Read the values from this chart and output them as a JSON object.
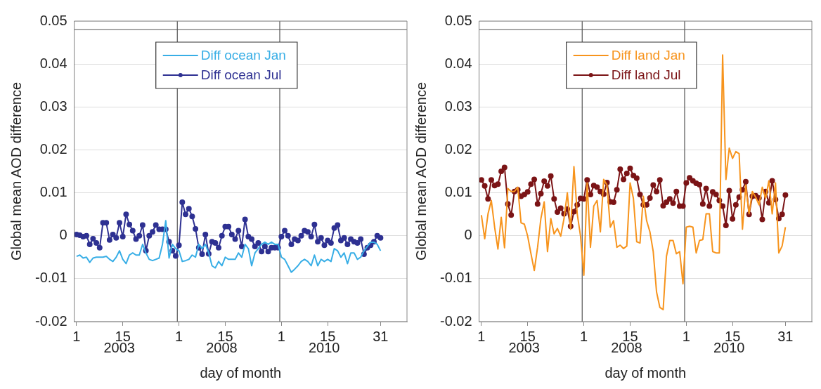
{
  "chart_data": [
    {
      "type": "line",
      "xlabel": "day of month",
      "ylabel": "Global mean AOD difference",
      "categories": [
        "1",
        null,
        null,
        null,
        null,
        null,
        null,
        null,
        null,
        null,
        null,
        null,
        null,
        null,
        "15",
        null,
        null,
        null,
        null,
        null,
        null,
        null,
        null,
        null,
        null,
        null,
        null,
        null,
        null,
        null,
        null,
        "1",
        null,
        null,
        null,
        null,
        null,
        null,
        null,
        null,
        null,
        null,
        null,
        null,
        null,
        "15",
        null,
        null,
        null,
        null,
        null,
        null,
        null,
        null,
        null,
        null,
        null,
        null,
        null,
        null,
        null,
        null,
        "1",
        null,
        null,
        null,
        null,
        null,
        null,
        null,
        null,
        null,
        null,
        null,
        null,
        null,
        "15",
        null,
        null,
        null,
        null,
        null,
        null,
        null,
        null,
        null,
        null,
        null,
        null,
        null,
        null,
        null,
        "31"
      ],
      "series": [
        {
          "name": "Diff ocean Jan",
          "color": "#38aee6",
          "marker": "none",
          "values": [
            -0.0048,
            -0.0045,
            -0.0052,
            -0.005,
            -0.0062,
            -0.0052,
            -0.005,
            -0.005,
            -0.005,
            -0.0048,
            -0.0055,
            -0.006,
            -0.005,
            -0.0035,
            -0.0055,
            -0.0065,
            -0.0045,
            -0.004,
            -0.0045,
            -0.0045,
            -0.002,
            -0.004,
            -0.0055,
            -0.0058,
            -0.0055,
            -0.0052,
            -0.002,
            0.0035,
            -0.0052,
            -0.002,
            -0.003,
            -0.0035,
            -0.006,
            -0.0058,
            -0.0055,
            -0.0045,
            -0.005,
            -0.002,
            -0.003,
            -0.002,
            -0.004,
            -0.007,
            -0.0075,
            -0.006,
            -0.007,
            -0.005,
            -0.0055,
            -0.0055,
            -0.0055,
            -0.004,
            -0.005,
            -0.002,
            -0.003,
            -0.007,
            -0.004,
            -0.003,
            -0.002,
            -0.0015,
            -0.002,
            -0.0015,
            -0.002,
            -0.002,
            -0.005,
            -0.0055,
            -0.007,
            -0.0085,
            -0.0078,
            -0.007,
            -0.006,
            -0.0055,
            -0.006,
            -0.007,
            -0.0045,
            -0.007,
            -0.0055,
            -0.006,
            -0.0055,
            -0.006,
            -0.003,
            -0.0035,
            -0.005,
            -0.004,
            -0.0065,
            -0.004,
            -0.004,
            -0.0055,
            -0.005,
            -0.0035,
            -0.0025,
            -0.0015,
            -0.0015,
            -0.002,
            -0.0035
          ]
        },
        {
          "name": "Diff ocean Jul",
          "color": "#2e3192",
          "marker": "circle",
          "values": [
            0.0003,
            0.0001,
            -0.0002,
            0,
            -0.002,
            -0.0007,
            -0.0017,
            -0.0028,
            0.003,
            0.003,
            -0.001,
            0.0003,
            -0.0005,
            0.003,
            -0.0002,
            0.005,
            0.0026,
            0.0012,
            -0.0008,
            0,
            0.0025,
            -0.0035,
            0,
            0.0009,
            0.0025,
            0.0015,
            0.0015,
            0.0015,
            -0.0014,
            -0.0035,
            -0.0047,
            -0.0022,
            0.0078,
            0.005,
            0.0063,
            0.0045,
            0.0016,
            -0.0028,
            -0.0043,
            0.0003,
            -0.0042,
            -0.0014,
            -0.0017,
            -0.0028,
            0,
            0.0021,
            0.0021,
            0.0003,
            -0.0008,
            0.0012,
            -0.0025,
            0.0038,
            -0.0002,
            -0.0008,
            -0.0025,
            -0.0017,
            -0.0037,
            -0.0025,
            -0.0037,
            -0.0028,
            -0.0028,
            -0.0028,
            -0.0002,
            0.0012,
            0,
            -0.002,
            -0.0008,
            -0.0011,
            0,
            0.0012,
            0.0009,
            -0.0002,
            0.0026,
            -0.0014,
            -0.0005,
            -0.0022,
            -0.0011,
            -0.0017,
            0.0018,
            0.0025,
            -0.0011,
            -0.0005,
            -0.002,
            -0.0008,
            -0.0014,
            -0.0017,
            -0.0008,
            -0.0043,
            -0.0028,
            -0.0022,
            -0.0014,
            0,
            -0.0005
          ]
        }
      ],
      "ylim": [
        -0.02,
        0.05
      ],
      "yticks": [
        -0.02,
        -0.01,
        0,
        0.01,
        0.02,
        0.03,
        0.04,
        0.05
      ],
      "ref_lines": [
        {
          "axis": "y",
          "value": 0.048,
          "color": "#555555"
        }
      ],
      "annotations": [
        "2003",
        "2008",
        "2010"
      ],
      "grid": "y",
      "legend": "top"
    },
    {
      "type": "line",
      "xlabel": "day of month",
      "ylabel": "Global mean AOD difference",
      "categories": [
        "1",
        null,
        null,
        null,
        null,
        null,
        null,
        null,
        null,
        null,
        null,
        null,
        null,
        null,
        "15",
        null,
        null,
        null,
        null,
        null,
        null,
        null,
        null,
        null,
        null,
        null,
        null,
        null,
        null,
        null,
        null,
        "1",
        null,
        null,
        null,
        null,
        null,
        null,
        null,
        null,
        null,
        null,
        null,
        null,
        null,
        "15",
        null,
        null,
        null,
        null,
        null,
        null,
        null,
        null,
        null,
        null,
        null,
        null,
        null,
        null,
        null,
        null,
        "1",
        null,
        null,
        null,
        null,
        null,
        null,
        null,
        null,
        null,
        null,
        null,
        null,
        null,
        "15",
        null,
        null,
        null,
        null,
        null,
        null,
        null,
        null,
        null,
        null,
        null,
        null,
        null,
        null,
        null,
        "31"
      ],
      "series": [
        {
          "name": "Diff land Jan",
          "color": "#f7941d",
          "marker": "none",
          "values": [
            0.0048,
            -0.0007,
            0.0051,
            0.0082,
            0.002,
            -0.0031,
            0.0043,
            -0.0028,
            0.011,
            0.0103,
            0.0103,
            0.0113,
            0.003,
            0.0027,
            -0.0001,
            -0.0042,
            -0.0081,
            -0.0027,
            0.004,
            0.0079,
            -0.0037,
            0.004,
            0.0004,
            0.0017,
            -0.0001,
            0.004,
            0.01,
            0.0015,
            0.0161,
            0.0051,
            -0.0001,
            -0.0092,
            0.0123,
            -0.0027,
            0.0069,
            0.0082,
            0.0009,
            0.0131,
            0.0118,
            0.002,
            0.0035,
            -0.0027,
            -0.0022,
            -0.003,
            -0.0024,
            0.0123,
            0.0087,
            -0.0014,
            -0.0017,
            0.0092,
            0.0035,
            0.0009,
            -0.0037,
            -0.0131,
            -0.0167,
            -0.0172,
            -0.0048,
            -0.0011,
            -0.0011,
            -0.0042,
            -0.0037,
            -0.0112,
            0.002,
            0.0022,
            0.002,
            -0.004,
            -0.0011,
            -0.0009,
            0.0051,
            0.0051,
            -0.0037,
            -0.004,
            -0.004,
            0.0421,
            0.0131,
            0.0204,
            0.018,
            0.0196,
            0.0191,
            0.0015,
            0.0118,
            0.0051,
            0.0103,
            0.009,
            0.0072,
            0.0113,
            0.0087,
            0.0128,
            0.0051,
            0.0123,
            -0.004,
            -0.0024,
            0.002
          ]
        },
        {
          "name": "Diff land Jul",
          "color": "#7b1416",
          "marker": "circle",
          "values": [
            0.013,
            0.0116,
            0.0086,
            0.013,
            0.0117,
            0.012,
            0.015,
            0.0159,
            0.0074,
            0.0048,
            0.0103,
            0.0107,
            0.0092,
            0.0096,
            0.0102,
            0.012,
            0.0131,
            0.0074,
            0.0098,
            0.0127,
            0.0116,
            0.0139,
            0.0086,
            0.0055,
            0.0064,
            0.0051,
            0.0062,
            0.0022,
            0.0056,
            0.0072,
            0.0087,
            0.0086,
            0.013,
            0.0096,
            0.0117,
            0.0113,
            0.0103,
            0.0097,
            0.0124,
            0.0079,
            0.0078,
            0.0107,
            0.0155,
            0.0131,
            0.0145,
            0.0157,
            0.014,
            0.0134,
            0.0096,
            0.0072,
            0.0072,
            0.0088,
            0.0118,
            0.0103,
            0.013,
            0.007,
            0.0078,
            0.0086,
            0.0076,
            0.0103,
            0.0069,
            0.0069,
            0.0123,
            0.0135,
            0.0128,
            0.0122,
            0.0119,
            0.0074,
            0.011,
            0.0069,
            0.0102,
            0.0096,
            0.0082,
            0.0069,
            0.0024,
            0.0105,
            0.0039,
            0.0072,
            0.009,
            0.0107,
            0.0126,
            0.005,
            0.0092,
            0.0093,
            0.0088,
            0.0038,
            0.0103,
            0.0077,
            0.0128,
            0.0084,
            0.004,
            0.005,
            0.0095
          ]
        }
      ],
      "ylim": [
        -0.02,
        0.05
      ],
      "yticks": [
        -0.02,
        -0.01,
        0,
        0.01,
        0.02,
        0.03,
        0.04,
        0.05
      ],
      "ref_lines": [
        {
          "axis": "y",
          "value": 0.048,
          "color": "#555555"
        }
      ],
      "annotations": [
        "2003",
        "2008",
        "2010"
      ],
      "grid": "y",
      "legend": "top"
    }
  ]
}
